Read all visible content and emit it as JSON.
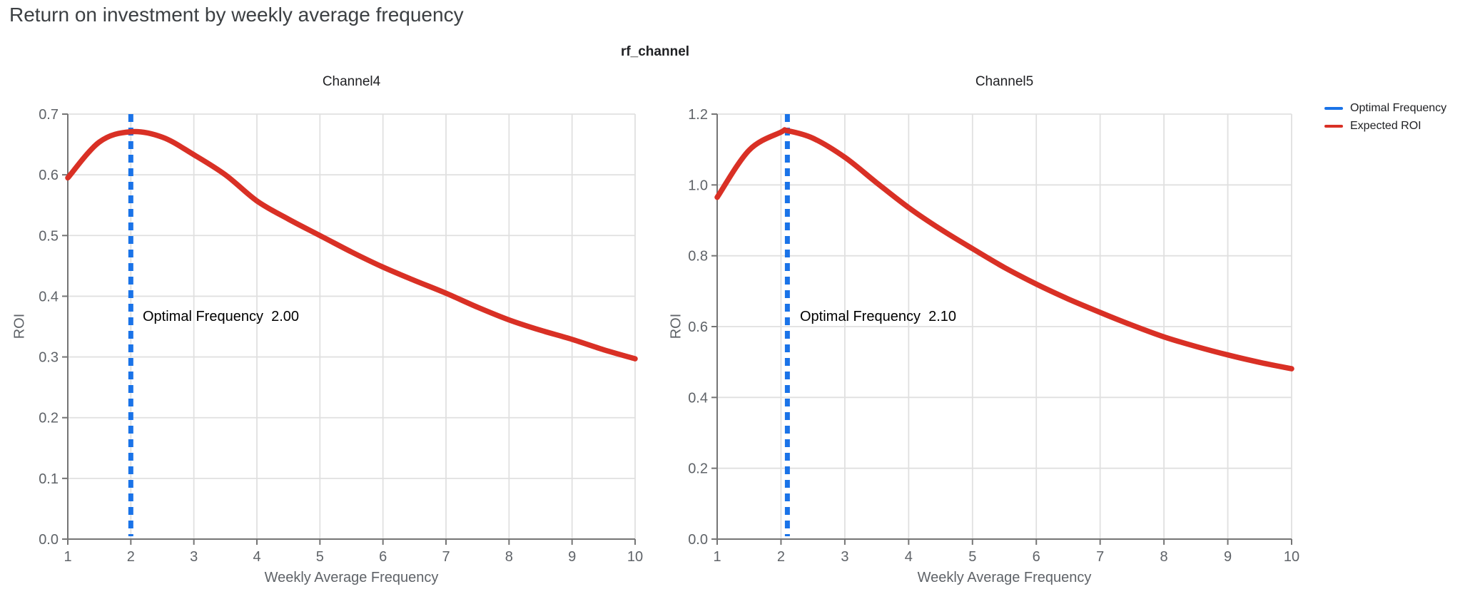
{
  "page_title": "Return on investment by weekly average frequency",
  "figure_title": "rf_channel",
  "colors": {
    "accent_red": "#d93025",
    "accent_blue": "#1a73e8",
    "grid": "#e0e0e0",
    "axis": "#757575",
    "tick_text": "#5f6368"
  },
  "legend": [
    {
      "label": "Optimal Frequency",
      "color": "#1a73e8"
    },
    {
      "label": "Expected ROI",
      "color": "#d93025"
    }
  ],
  "chart_data": [
    {
      "type": "line",
      "title": "Channel4",
      "xlabel": "Weekly Average Frequency",
      "ylabel": "ROI",
      "xlim": [
        1,
        10
      ],
      "ylim": [
        0,
        0.7
      ],
      "xticks": [
        1,
        2,
        3,
        4,
        5,
        6,
        7,
        8,
        9,
        10
      ],
      "yticks": [
        0.0,
        0.1,
        0.2,
        0.3,
        0.4,
        0.5,
        0.6,
        0.7
      ],
      "grid": true,
      "optimal_frequency": 2.0,
      "annotation": {
        "text": "Optimal Frequency  2.00",
        "y_value": 0.365
      },
      "vline": {
        "name": "Optimal Frequency",
        "x": 2.0,
        "color": "#1a73e8",
        "style": "dashed"
      },
      "series": [
        {
          "name": "Expected ROI",
          "color": "#d93025",
          "x": [
            1,
            1.5,
            2,
            2.5,
            3,
            3.5,
            4,
            4.5,
            5,
            5.5,
            6,
            6.5,
            7,
            7.5,
            8,
            8.5,
            9,
            9.5,
            10
          ],
          "y": [
            0.595,
            0.654,
            0.671,
            0.662,
            0.633,
            0.6,
            0.557,
            0.527,
            0.5,
            0.473,
            0.448,
            0.426,
            0.405,
            0.382,
            0.361,
            0.344,
            0.329,
            0.312,
            0.297
          ]
        }
      ]
    },
    {
      "type": "line",
      "title": "Channel5",
      "xlabel": "Weekly Average Frequency",
      "ylabel": "ROI",
      "xlim": [
        1,
        10
      ],
      "ylim": [
        0,
        1.2
      ],
      "xticks": [
        1,
        2,
        3,
        4,
        5,
        6,
        7,
        8,
        9,
        10
      ],
      "yticks": [
        0.0,
        0.2,
        0.4,
        0.6,
        0.8,
        1.0,
        1.2
      ],
      "grid": true,
      "optimal_frequency": 2.1,
      "annotation": {
        "text": "Optimal Frequency  2.10",
        "y_value": 0.627
      },
      "vline": {
        "name": "Optimal Frequency",
        "x": 2.1,
        "color": "#1a73e8",
        "style": "dashed"
      },
      "series": [
        {
          "name": "Expected ROI",
          "color": "#d93025",
          "x": [
            1,
            1.5,
            2,
            2.1,
            2.5,
            3,
            3.5,
            4,
            4.5,
            5,
            5.5,
            6,
            6.5,
            7,
            7.5,
            8,
            8.5,
            9,
            9.5,
            10
          ],
          "y": [
            0.965,
            1.098,
            1.149,
            1.153,
            1.132,
            1.078,
            1.006,
            0.936,
            0.875,
            0.82,
            0.767,
            0.72,
            0.678,
            0.64,
            0.604,
            0.571,
            0.544,
            0.52,
            0.499,
            0.481
          ]
        }
      ]
    }
  ]
}
